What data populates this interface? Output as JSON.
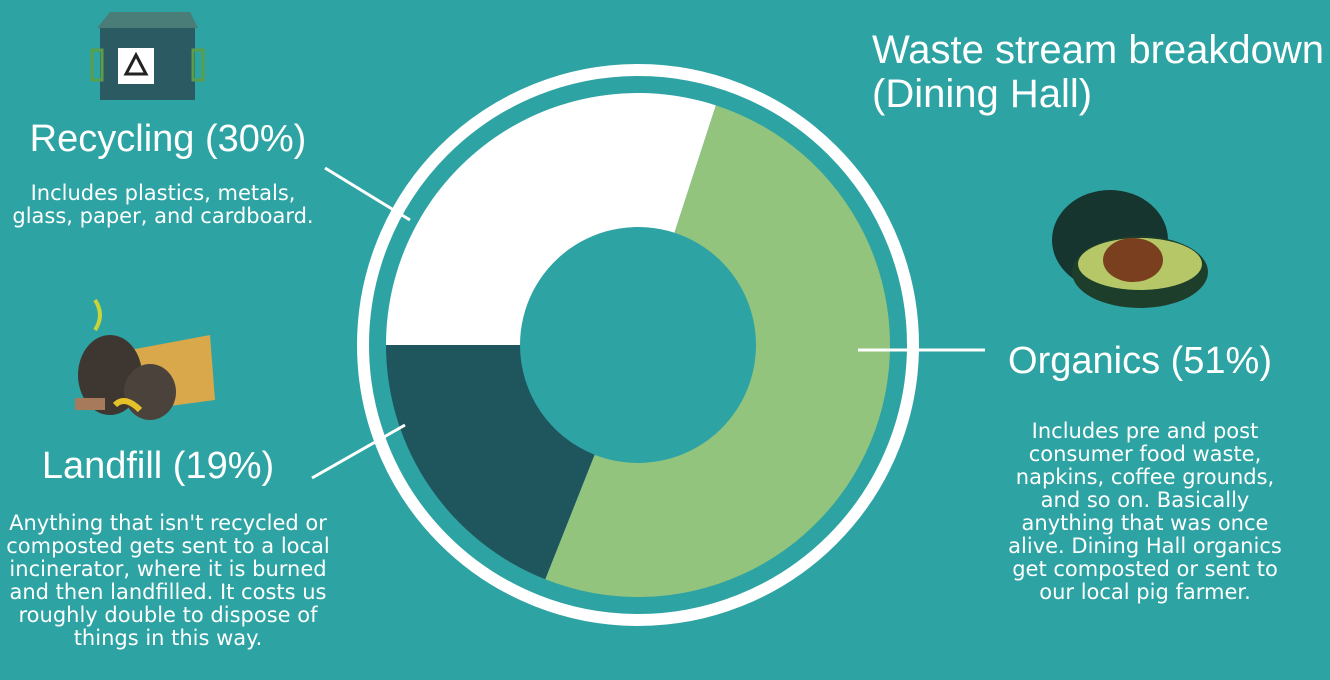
{
  "chart_data": {
    "type": "donut",
    "title": "Waste stream breakdown (Dining Hall)",
    "categories": [
      "Recycling",
      "Organics",
      "Landfill"
    ],
    "values": [
      30,
      51,
      19
    ],
    "value_labels": [
      "Recycling (30%)",
      "Organics (51%)",
      "Landfill (19%)"
    ],
    "colors": [
      "#ffffff",
      "#93c47d",
      "#1f565e"
    ],
    "descriptions": [
      "Includes plastics, metals, glass, paper, and cardboard.",
      "Includes pre and post consumer food waste, napkins, coffee grounds, and so on. Basically anything that was once alive. Dining Hall organics get composted or sent to our local pig farmer.",
      "Anything that isn't recycled or composted gets sent to a local incinerator, where it is burned and then landfilled. It costs us roughly double to dispose of things in this way."
    ]
  }
}
